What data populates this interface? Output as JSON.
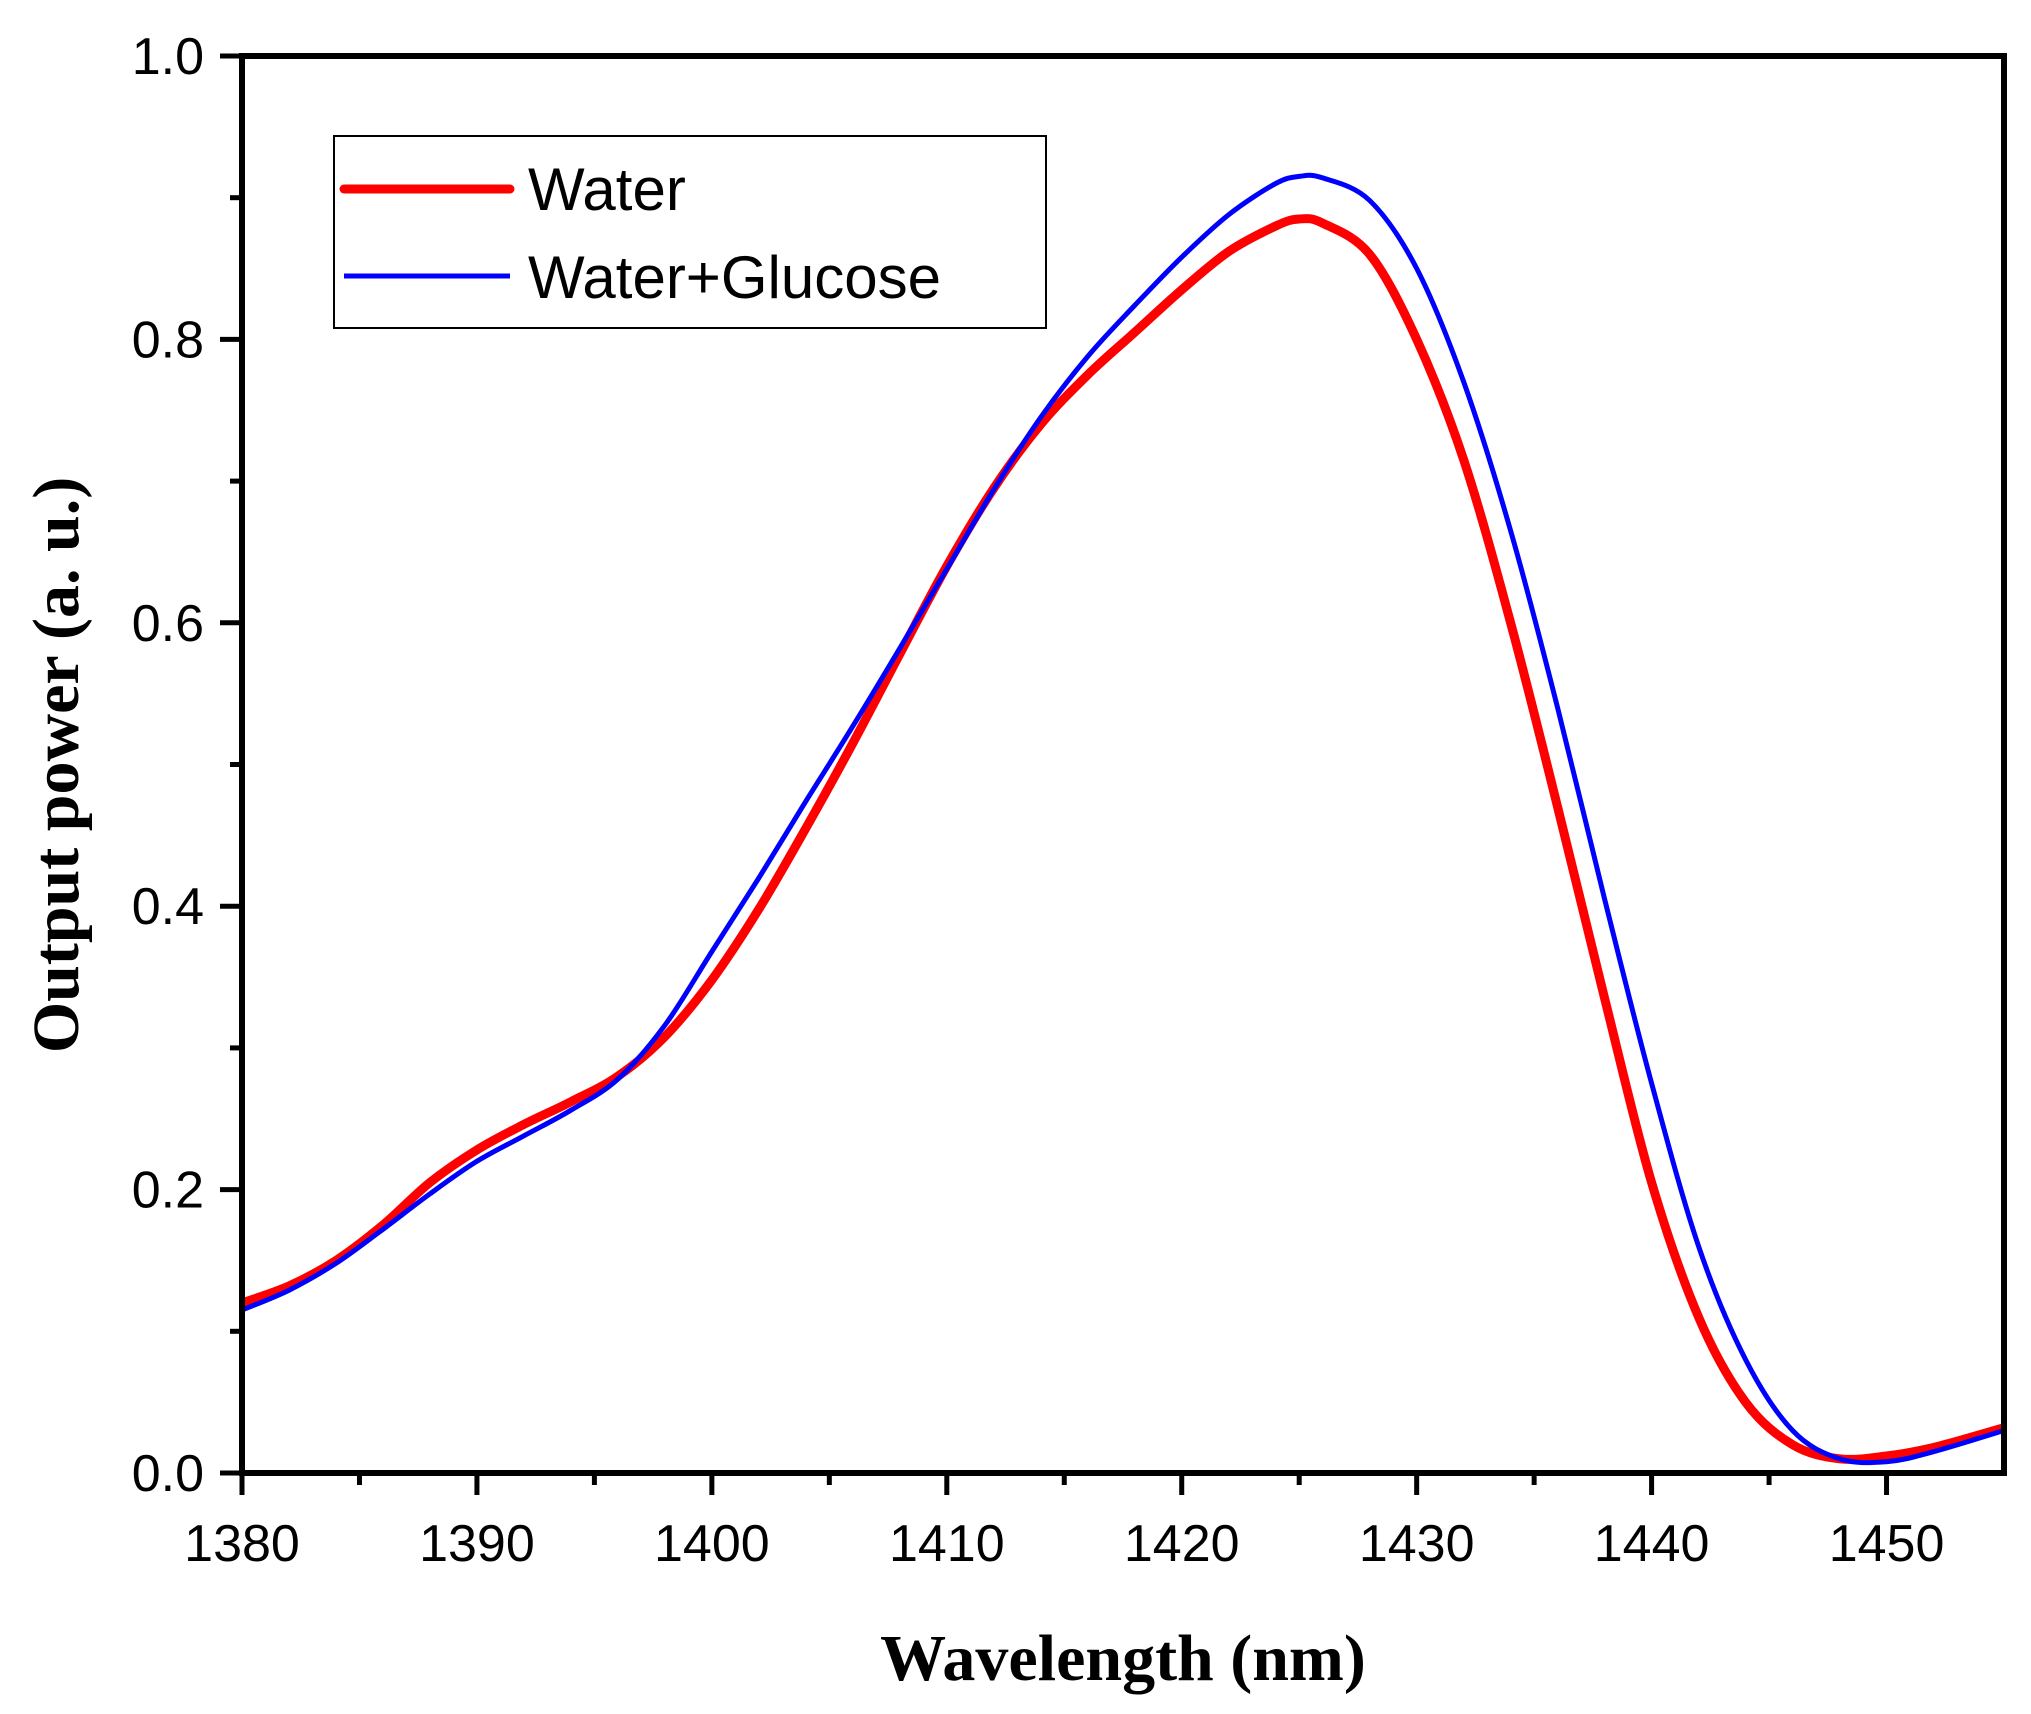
{
  "chart_data": {
    "type": "line",
    "title": "",
    "xlabel": "Wavelength (nm)",
    "ylabel": "Output power (a. u.)",
    "xlim": [
      1380,
      1455
    ],
    "ylim": [
      0.0,
      1.0
    ],
    "x_ticks": [
      "1380",
      "1390",
      "1400",
      "1410",
      "1420",
      "1430",
      "1440",
      "1450"
    ],
    "x_tick_values": [
      1380,
      1390,
      1400,
      1410,
      1420,
      1430,
      1440,
      1450
    ],
    "y_ticks": [
      "0.0",
      "0.2",
      "0.4",
      "0.6",
      "0.8",
      "1.0"
    ],
    "y_tick_values": [
      0.0,
      0.2,
      0.4,
      0.6,
      0.8,
      1.0
    ],
    "legend_position": "top-left",
    "series": [
      {
        "name": "Water",
        "color": "#ff0000",
        "points": [
          [
            1380,
            0.12
          ],
          [
            1382,
            0.132
          ],
          [
            1384,
            0.15
          ],
          [
            1386,
            0.175
          ],
          [
            1388,
            0.205
          ],
          [
            1390,
            0.228
          ],
          [
            1392,
            0.246
          ],
          [
            1394,
            0.262
          ],
          [
            1396,
            0.28
          ],
          [
            1398,
            0.308
          ],
          [
            1400,
            0.348
          ],
          [
            1402,
            0.398
          ],
          [
            1404,
            0.455
          ],
          [
            1406,
            0.515
          ],
          [
            1408,
            0.578
          ],
          [
            1410,
            0.64
          ],
          [
            1412,
            0.695
          ],
          [
            1414,
            0.74
          ],
          [
            1416,
            0.775
          ],
          [
            1418,
            0.805
          ],
          [
            1420,
            0.835
          ],
          [
            1422,
            0.862
          ],
          [
            1424,
            0.88
          ],
          [
            1425,
            0.885
          ],
          [
            1426,
            0.882
          ],
          [
            1428,
            0.86
          ],
          [
            1430,
            0.8
          ],
          [
            1432,
            0.715
          ],
          [
            1434,
            0.6
          ],
          [
            1436,
            0.47
          ],
          [
            1438,
            0.335
          ],
          [
            1440,
            0.205
          ],
          [
            1442,
            0.11
          ],
          [
            1444,
            0.05
          ],
          [
            1446,
            0.02
          ],
          [
            1448,
            0.01
          ],
          [
            1450,
            0.012
          ],
          [
            1452,
            0.018
          ],
          [
            1455,
            0.032
          ]
        ]
      },
      {
        "name": "Water+Glucose",
        "color": "#0000ff",
        "points": [
          [
            1380,
            0.115
          ],
          [
            1382,
            0.129
          ],
          [
            1384,
            0.148
          ],
          [
            1386,
            0.172
          ],
          [
            1388,
            0.197
          ],
          [
            1390,
            0.22
          ],
          [
            1392,
            0.238
          ],
          [
            1394,
            0.256
          ],
          [
            1396,
            0.278
          ],
          [
            1398,
            0.316
          ],
          [
            1400,
            0.368
          ],
          [
            1402,
            0.42
          ],
          [
            1404,
            0.474
          ],
          [
            1406,
            0.527
          ],
          [
            1408,
            0.582
          ],
          [
            1410,
            0.638
          ],
          [
            1412,
            0.694
          ],
          [
            1414,
            0.745
          ],
          [
            1416,
            0.788
          ],
          [
            1418,
            0.824
          ],
          [
            1420,
            0.858
          ],
          [
            1422,
            0.888
          ],
          [
            1424,
            0.91
          ],
          [
            1425,
            0.915
          ],
          [
            1426,
            0.914
          ],
          [
            1428,
            0.898
          ],
          [
            1430,
            0.85
          ],
          [
            1432,
            0.77
          ],
          [
            1434,
            0.665
          ],
          [
            1436,
            0.54
          ],
          [
            1438,
            0.405
          ],
          [
            1440,
            0.275
          ],
          [
            1442,
            0.16
          ],
          [
            1444,
            0.08
          ],
          [
            1446,
            0.03
          ],
          [
            1448,
            0.01
          ],
          [
            1450,
            0.008
          ],
          [
            1452,
            0.015
          ],
          [
            1455,
            0.03
          ]
        ]
      }
    ]
  }
}
